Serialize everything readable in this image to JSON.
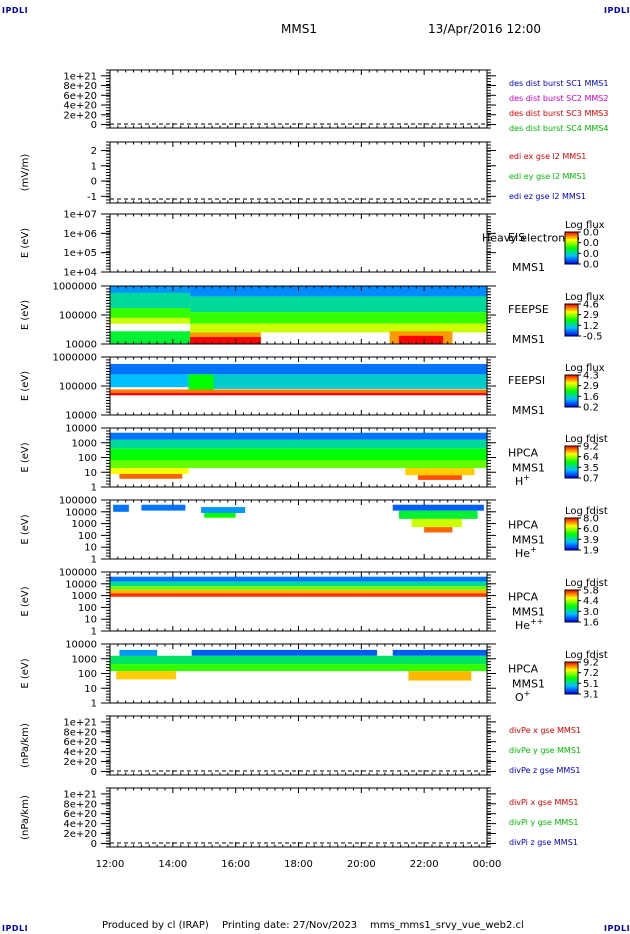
{
  "corner_label": "IPDLI",
  "header": {
    "title": "MMS1",
    "datetime": "13/Apr/2016 12:00"
  },
  "footer": {
    "produced_by": "Produced by cl (IRAP)",
    "printing_date": "Printing date: 27/Nov/2023",
    "script": "mms_mms1_srvy_vue_web2.cl"
  },
  "colors": {
    "red": "#dd0000",
    "magenta": "#cc00cc",
    "green": "#00bb00",
    "blue": "#0000cc"
  },
  "chart_data": {
    "type": "heatmap",
    "x_tick_labels": [
      "12:00",
      "14:00",
      "16:00",
      "18:00",
      "20:00",
      "22:00",
      "00:00"
    ],
    "x_range_hours": [
      12,
      24
    ],
    "panels": [
      {
        "id": "des-dist",
        "kind": "line",
        "ylabel": "",
        "yticks": [
          "1e+21",
          "8e+20",
          "6e+20",
          "4e+20",
          "2e+20",
          "0"
        ],
        "legend": [
          {
            "text": "des dist burst SC1 MMS1",
            "color": "#0000cc"
          },
          {
            "text": "des dist burst SC2 MMS2",
            "color": "#cc00cc"
          },
          {
            "text": "des dist burst SC3 MMS3",
            "color": "#dd0000"
          },
          {
            "text": "des dist burst SC4 MMS4",
            "color": "#00bb00"
          }
        ]
      },
      {
        "id": "edi-e",
        "kind": "line",
        "ylabel": "(mV/m)",
        "yticks": [
          "2",
          "1",
          "0",
          "-1"
        ],
        "legend": [
          {
            "text": "edi ex gse l2 MMS1",
            "color": "#dd0000"
          },
          {
            "text": "edi ey gse l2 MMS1",
            "color": "#00bb00"
          },
          {
            "text": "edi ez gse l2 MMS1",
            "color": "#0000cc"
          }
        ]
      },
      {
        "id": "eis",
        "kind": "spectrogram",
        "ylabel": "E (eV)",
        "yticks": [
          "1e+07",
          "1e+06",
          "1e+05",
          "1e+04"
        ],
        "labels": [
          "EIS",
          "MMS1"
        ],
        "overlay_text": "Heavy electron to",
        "cb_title": "Log flux",
        "cb_ticks": [
          "0.0",
          "0.0",
          "0.0",
          "0.0"
        ],
        "fill": []
      },
      {
        "id": "feeps-e",
        "kind": "spectrogram",
        "ylabel": "E (eV)",
        "yticks": [
          "1000000",
          "100000",
          "10000"
        ],
        "labels": [
          "FEEPSE",
          "MMS1"
        ],
        "cb_title": "Log flux",
        "cb_ticks": [
          "4.6",
          "2.9",
          "1.2",
          "-0.5"
        ],
        "fill": [
          {
            "x0": 12.0,
            "x1": 14.55,
            "y0": 0.0,
            "y1": 0.12,
            "level": 0.2
          },
          {
            "x0": 12.0,
            "x1": 14.55,
            "y0": 0.12,
            "y1": 0.38,
            "level": 0.35
          },
          {
            "x0": 12.0,
            "x1": 14.55,
            "y0": 0.38,
            "y1": 0.55,
            "level": 0.55
          },
          {
            "x0": 12.0,
            "x1": 14.55,
            "y0": 0.55,
            "y1": 0.65,
            "level": 0.7
          },
          {
            "x0": 12.0,
            "x1": 14.55,
            "y0": 0.78,
            "y1": 1.0,
            "level": 0.45
          },
          {
            "x0": 14.55,
            "x1": 24.0,
            "y0": 0.0,
            "y1": 0.18,
            "level": 0.18
          },
          {
            "x0": 14.55,
            "x1": 24.0,
            "y0": 0.18,
            "y1": 0.45,
            "level": 0.35
          },
          {
            "x0": 14.55,
            "x1": 24.0,
            "y0": 0.45,
            "y1": 0.65,
            "level": 0.55
          },
          {
            "x0": 14.55,
            "x1": 24.0,
            "y0": 0.65,
            "y1": 0.8,
            "level": 0.7
          },
          {
            "x0": 14.55,
            "x1": 16.8,
            "y0": 0.8,
            "y1": 1.0,
            "level": 0.85
          },
          {
            "x0": 14.55,
            "x1": 16.8,
            "y0": 0.88,
            "y1": 1.0,
            "level": 1.0
          },
          {
            "x0": 20.9,
            "x1": 22.9,
            "y0": 0.78,
            "y1": 1.0,
            "level": 0.85
          },
          {
            "x0": 21.2,
            "x1": 22.6,
            "y0": 0.86,
            "y1": 1.0,
            "level": 1.0
          }
        ]
      },
      {
        "id": "feeps-i",
        "kind": "spectrogram",
        "ylabel": "E (eV)",
        "yticks": [
          "1000000",
          "100000",
          "10000"
        ],
        "labels": [
          "FEEPSI",
          "MMS1"
        ],
        "cb_title": "Log flux",
        "cb_ticks": [
          "4.3",
          "2.9",
          "1.6",
          "0.2"
        ],
        "fill": [
          {
            "x0": 12.0,
            "x1": 24.0,
            "y0": 0.12,
            "y1": 0.3,
            "level": 0.15
          },
          {
            "x0": 12.0,
            "x1": 24.0,
            "y0": 0.3,
            "y1": 0.52,
            "level": 0.25
          },
          {
            "x0": 14.5,
            "x1": 24.0,
            "y0": 0.3,
            "y1": 0.55,
            "level": 0.3
          },
          {
            "x0": 14.5,
            "x1": 15.3,
            "y0": 0.3,
            "y1": 0.58,
            "level": 0.5
          },
          {
            "x0": 12.0,
            "x1": 24.0,
            "y0": 0.56,
            "y1": 0.62,
            "level": 0.88
          },
          {
            "x0": 12.0,
            "x1": 24.0,
            "y0": 0.62,
            "y1": 0.66,
            "level": 1.0
          }
        ]
      },
      {
        "id": "hpca-h",
        "kind": "spectrogram",
        "ylabel": "E (eV)",
        "yticks": [
          "10000",
          "1000",
          "100",
          "10",
          "1"
        ],
        "labels": [
          "HPCA",
          "MMS1",
          "H+"
        ],
        "cb_title": "Log fdist",
        "cb_ticks": [
          "9.2",
          "6.4",
          "3.5",
          "0.7"
        ],
        "fill": [
          {
            "x0": 12.0,
            "x1": 24.0,
            "y0": 0.08,
            "y1": 0.2,
            "level": 0.15
          },
          {
            "x0": 12.0,
            "x1": 24.0,
            "y0": 0.2,
            "y1": 0.35,
            "level": 0.35
          },
          {
            "x0": 12.0,
            "x1": 24.0,
            "y0": 0.35,
            "y1": 0.55,
            "level": 0.5
          },
          {
            "x0": 12.0,
            "x1": 24.0,
            "y0": 0.55,
            "y1": 0.68,
            "level": 0.6
          },
          {
            "x0": 12.0,
            "x1": 14.5,
            "y0": 0.68,
            "y1": 0.78,
            "level": 0.75
          },
          {
            "x0": 12.3,
            "x1": 14.3,
            "y0": 0.78,
            "y1": 0.86,
            "level": 0.9
          },
          {
            "x0": 21.4,
            "x1": 23.6,
            "y0": 0.68,
            "y1": 0.8,
            "level": 0.8
          },
          {
            "x0": 21.8,
            "x1": 23.2,
            "y0": 0.8,
            "y1": 0.88,
            "level": 0.92
          }
        ]
      },
      {
        "id": "hpca-he",
        "kind": "spectrogram",
        "ylabel": "E (eV)",
        "yticks": [
          "100000",
          "10000",
          "1000",
          "100",
          "10",
          "1"
        ],
        "labels": [
          "HPCA",
          "MMS1",
          "He+"
        ],
        "cb_title": "Log fdist",
        "cb_ticks": [
          "8.0",
          "6.0",
          "3.9",
          "1.9"
        ],
        "fill": [
          {
            "x0": 12.1,
            "x1": 12.6,
            "y0": 0.08,
            "y1": 0.2,
            "level": 0.15
          },
          {
            "x0": 13.0,
            "x1": 14.4,
            "y0": 0.08,
            "y1": 0.18,
            "level": 0.15
          },
          {
            "x0": 14.9,
            "x1": 16.3,
            "y0": 0.12,
            "y1": 0.22,
            "level": 0.2
          },
          {
            "x0": 15.0,
            "x1": 16.0,
            "y0": 0.22,
            "y1": 0.3,
            "level": 0.5
          },
          {
            "x0": 21.0,
            "x1": 23.9,
            "y0": 0.08,
            "y1": 0.18,
            "level": 0.12
          },
          {
            "x0": 21.2,
            "x1": 23.7,
            "y0": 0.18,
            "y1": 0.32,
            "level": 0.45
          },
          {
            "x0": 21.6,
            "x1": 23.2,
            "y0": 0.32,
            "y1": 0.46,
            "level": 0.7
          },
          {
            "x0": 22.0,
            "x1": 22.9,
            "y0": 0.46,
            "y1": 0.55,
            "level": 0.9
          }
        ]
      },
      {
        "id": "hpca-he2",
        "kind": "spectrogram",
        "ylabel": "E (eV)",
        "yticks": [
          "100000",
          "10000",
          "1000",
          "100",
          "10",
          "1"
        ],
        "labels": [
          "HPCA",
          "MMS1",
          "He++"
        ],
        "cb_title": "Log fdist",
        "cb_ticks": [
          "5.8",
          "4.4",
          "3.0",
          "1.6"
        ],
        "fill": [
          {
            "x0": 12.0,
            "x1": 24.0,
            "y0": 0.08,
            "y1": 0.16,
            "level": 0.15
          },
          {
            "x0": 12.0,
            "x1": 24.0,
            "y0": 0.16,
            "y1": 0.24,
            "level": 0.35
          },
          {
            "x0": 12.0,
            "x1": 24.0,
            "y0": 0.24,
            "y1": 0.3,
            "level": 0.6
          },
          {
            "x0": 12.0,
            "x1": 24.0,
            "y0": 0.3,
            "y1": 0.36,
            "level": 0.82
          },
          {
            "x0": 12.0,
            "x1": 24.0,
            "y0": 0.36,
            "y1": 0.42,
            "level": 0.95
          }
        ]
      },
      {
        "id": "hpca-o",
        "kind": "spectrogram",
        "ylabel": "E (eV)",
        "yticks": [
          "10000",
          "1000",
          "100",
          "10",
          "1"
        ],
        "labels": [
          "HPCA",
          "MMS1",
          "O+"
        ],
        "cb_title": "Log fdist",
        "cb_ticks": [
          "9.2",
          "7.2",
          "5.1",
          "3.1"
        ],
        "fill": [
          {
            "x0": 12.3,
            "x1": 13.5,
            "y0": 0.1,
            "y1": 0.24,
            "level": 0.2
          },
          {
            "x0": 14.6,
            "x1": 20.5,
            "y0": 0.1,
            "y1": 0.2,
            "level": 0.12
          },
          {
            "x0": 21.0,
            "x1": 24.0,
            "y0": 0.1,
            "y1": 0.2,
            "level": 0.12
          },
          {
            "x0": 12.0,
            "x1": 24.0,
            "y0": 0.2,
            "y1": 0.34,
            "level": 0.4
          },
          {
            "x0": 12.0,
            "x1": 24.0,
            "y0": 0.34,
            "y1": 0.46,
            "level": 0.55
          },
          {
            "x0": 12.2,
            "x1": 14.1,
            "y0": 0.46,
            "y1": 0.6,
            "level": 0.8
          },
          {
            "x0": 21.5,
            "x1": 23.5,
            "y0": 0.46,
            "y1": 0.62,
            "level": 0.82
          }
        ]
      },
      {
        "id": "divpe",
        "kind": "line",
        "ylabel": "(nPa/km)",
        "yticks": [
          "1e+21",
          "8e+20",
          "6e+20",
          "4e+20",
          "2e+20",
          "0"
        ],
        "legend": [
          {
            "text": "divPe x gse MMS1",
            "color": "#dd0000"
          },
          {
            "text": "divPe y gse MMS1",
            "color": "#00bb00"
          },
          {
            "text": "divPe z gse MMS1",
            "color": "#0000cc"
          }
        ]
      },
      {
        "id": "divpi",
        "kind": "line",
        "ylabel": "(nPa/km)",
        "yticks": [
          "1e+21",
          "8e+20",
          "6e+20",
          "4e+20",
          "2e+20",
          "0"
        ],
        "legend": [
          {
            "text": "divPi x gse MMS1",
            "color": "#dd0000"
          },
          {
            "text": "divPi y gse MMS1",
            "color": "#00bb00"
          },
          {
            "text": "divPi z gse MMS1",
            "color": "#0000cc"
          }
        ]
      }
    ]
  }
}
